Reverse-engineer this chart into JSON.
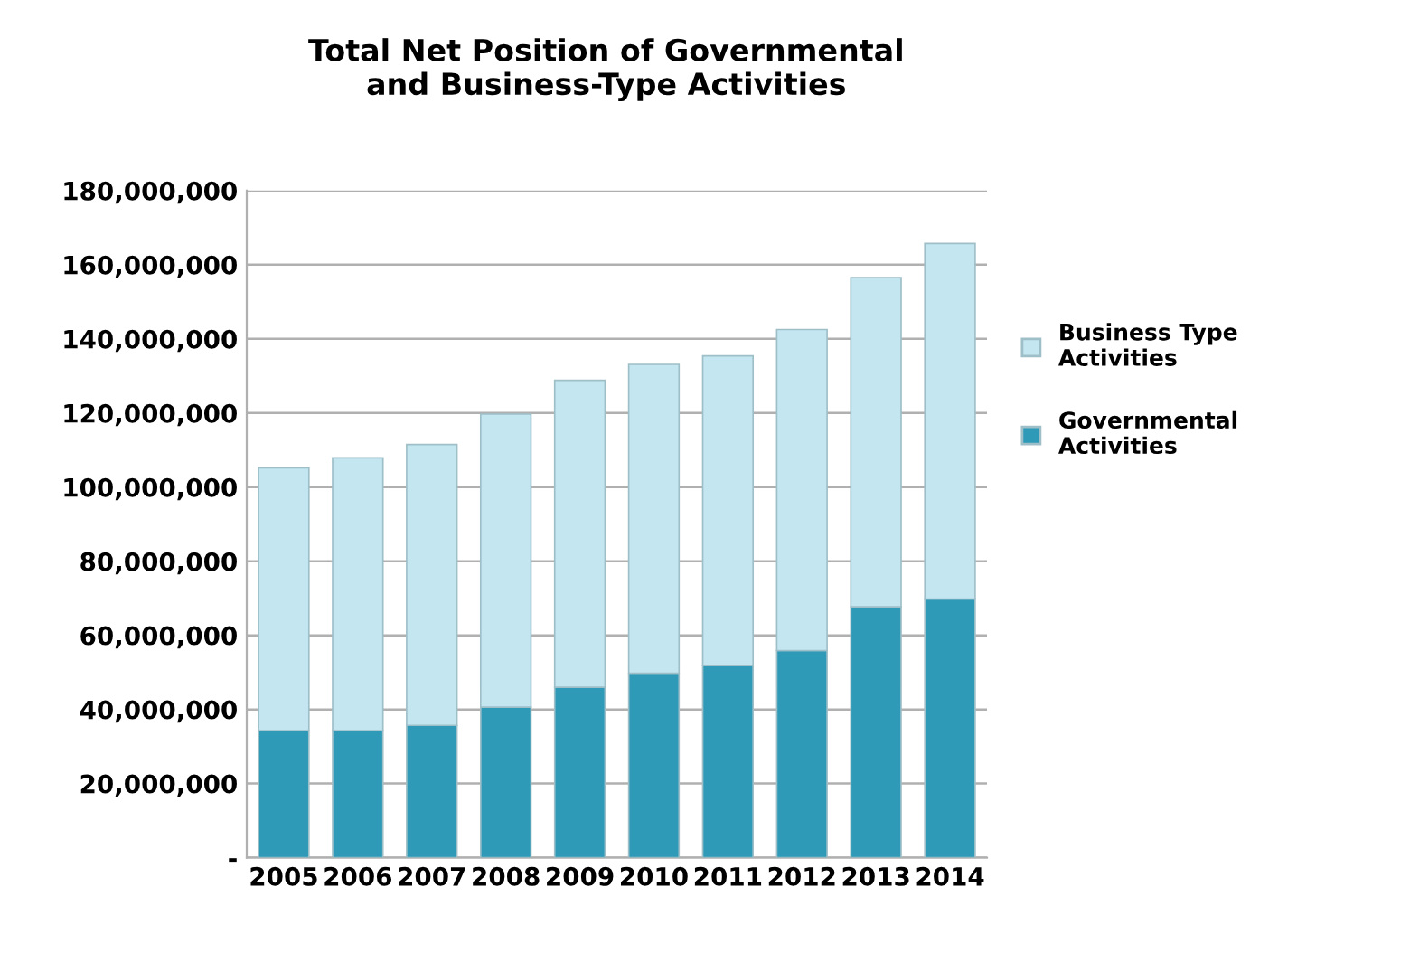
{
  "chart_data": {
    "type": "bar",
    "title": "Total Net Position of Governmental\nand Business-Type Activities",
    "categories": [
      "2005",
      "2006",
      "2007",
      "2008",
      "2009",
      "2010",
      "2011",
      "2012",
      "2013",
      "2014"
    ],
    "stacked": true,
    "series": [
      {
        "name": "Governmental Activities",
        "color": "#2e9ab8",
        "values": [
          34300000,
          34300000,
          35700000,
          40600000,
          46000000,
          49800000,
          51800000,
          55900000,
          67700000,
          69800000
        ]
      },
      {
        "name": "Business Type Activities",
        "color": "#c3e6f0",
        "values": [
          70900000,
          73600000,
          75800000,
          79100000,
          82800000,
          83300000,
          83600000,
          86600000,
          88800000,
          95900000
        ]
      }
    ],
    "ylim": [
      0,
      180000000
    ],
    "yticks": [
      {
        "value": 0,
        "label": "-"
      },
      {
        "value": 20000000,
        "label": "20,000,000"
      },
      {
        "value": 40000000,
        "label": "40,000,000"
      },
      {
        "value": 60000000,
        "label": "60,000,000"
      },
      {
        "value": 80000000,
        "label": "80,000,000"
      },
      {
        "value": 100000000,
        "label": "100,000,000"
      },
      {
        "value": 120000000,
        "label": "120,000,000"
      },
      {
        "value": 140000000,
        "label": "140,000,000"
      },
      {
        "value": 160000000,
        "label": "160,000,000"
      },
      {
        "value": 180000000,
        "label": "180,000,000"
      }
    ],
    "grid": "y",
    "legend": "right"
  }
}
